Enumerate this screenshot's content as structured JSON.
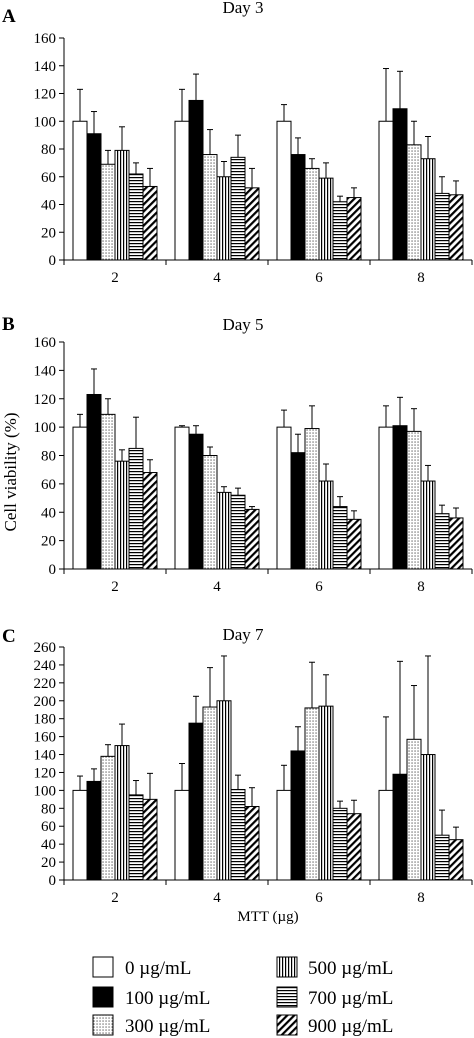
{
  "legend": {
    "items": [
      {
        "label": "0 µg/mL",
        "pattern": "white"
      },
      {
        "label": "100 µg/mL",
        "pattern": "black"
      },
      {
        "label": "300 µg/mL",
        "pattern": "dots"
      },
      {
        "label": "500 µg/mL",
        "pattern": "vlines"
      },
      {
        "label": "700 µg/mL",
        "pattern": "hlines"
      },
      {
        "label": "900 µg/mL",
        "pattern": "diag"
      }
    ]
  },
  "chart_data": [
    {
      "type": "bar",
      "panel_label": "A",
      "title": "Day 3",
      "categories": [
        "2",
        "4",
        "6",
        "8"
      ],
      "ylim": [
        0,
        160
      ],
      "yticks": [
        0,
        20,
        40,
        60,
        80,
        100,
        120,
        140,
        160
      ],
      "series": [
        {
          "name": "0 µg/mL",
          "values": [
            100,
            100,
            100,
            100
          ],
          "errors": [
            23,
            23,
            12,
            38
          ]
        },
        {
          "name": "100 µg/mL",
          "values": [
            91,
            115,
            76,
            109
          ],
          "errors": [
            16,
            19,
            12,
            27
          ]
        },
        {
          "name": "300 µg/mL",
          "values": [
            69,
            76,
            66,
            83
          ],
          "errors": [
            10,
            18,
            7,
            17
          ]
        },
        {
          "name": "500 µg/mL",
          "values": [
            79,
            60,
            59,
            73
          ],
          "errors": [
            17,
            11,
            11,
            16
          ]
        },
        {
          "name": "700 µg/mL",
          "values": [
            62,
            74,
            42,
            48
          ],
          "errors": [
            8,
            16,
            4,
            12
          ]
        },
        {
          "name": "900 µg/mL",
          "values": [
            53,
            52,
            45,
            47
          ],
          "errors": [
            13,
            14,
            7,
            10
          ]
        }
      ]
    },
    {
      "type": "bar",
      "panel_label": "B",
      "title": "Day 5",
      "ylabel": "Cell viability (%)",
      "categories": [
        "2",
        "4",
        "6",
        "8"
      ],
      "ylim": [
        0,
        160
      ],
      "yticks": [
        0,
        20,
        40,
        60,
        80,
        100,
        120,
        140,
        160
      ],
      "series": [
        {
          "name": "0 µg/mL",
          "values": [
            100,
            100,
            100,
            100
          ],
          "errors": [
            9,
            1,
            12,
            15
          ]
        },
        {
          "name": "100 µg/mL",
          "values": [
            123,
            95,
            82,
            101
          ],
          "errors": [
            18,
            6,
            13,
            20
          ]
        },
        {
          "name": "300 µg/mL",
          "values": [
            109,
            80,
            99,
            97
          ],
          "errors": [
            11,
            6,
            16,
            16
          ]
        },
        {
          "name": "500 µg/mL",
          "values": [
            76,
            54,
            62,
            62
          ],
          "errors": [
            8,
            4,
            12,
            11
          ]
        },
        {
          "name": "700 µg/mL",
          "values": [
            85,
            52,
            44,
            39
          ],
          "errors": [
            22,
            5,
            7,
            6
          ]
        },
        {
          "name": "900 µg/mL",
          "values": [
            68,
            42,
            35,
            36
          ],
          "errors": [
            9,
            2,
            6,
            7
          ]
        }
      ]
    },
    {
      "type": "bar",
      "panel_label": "C",
      "title": "Day 7",
      "xlabel": "MTT (µg)",
      "categories": [
        "2",
        "4",
        "6",
        "8"
      ],
      "ylim": [
        0,
        260
      ],
      "yticks": [
        0,
        20,
        40,
        60,
        80,
        100,
        120,
        140,
        160,
        180,
        200,
        220,
        240,
        260
      ],
      "series": [
        {
          "name": "0 µg/mL",
          "values": [
            100,
            100,
            100,
            100
          ],
          "errors": [
            16,
            30,
            28,
            82
          ]
        },
        {
          "name": "100 µg/mL",
          "values": [
            110,
            175,
            144,
            118
          ],
          "errors": [
            14,
            30,
            27,
            126
          ]
        },
        {
          "name": "300 µg/mL",
          "values": [
            138,
            193,
            192,
            157
          ],
          "errors": [
            13,
            44,
            51,
            60
          ]
        },
        {
          "name": "500 µg/mL",
          "values": [
            150,
            200,
            194,
            140
          ],
          "errors": [
            24,
            50,
            35,
            110
          ]
        },
        {
          "name": "700 µg/mL",
          "values": [
            95,
            101,
            80,
            50
          ],
          "errors": [
            16,
            16,
            8,
            28
          ]
        },
        {
          "name": "900 µg/mL",
          "values": [
            90,
            82,
            74,
            45
          ],
          "errors": [
            29,
            21,
            15,
            14
          ]
        }
      ]
    }
  ]
}
